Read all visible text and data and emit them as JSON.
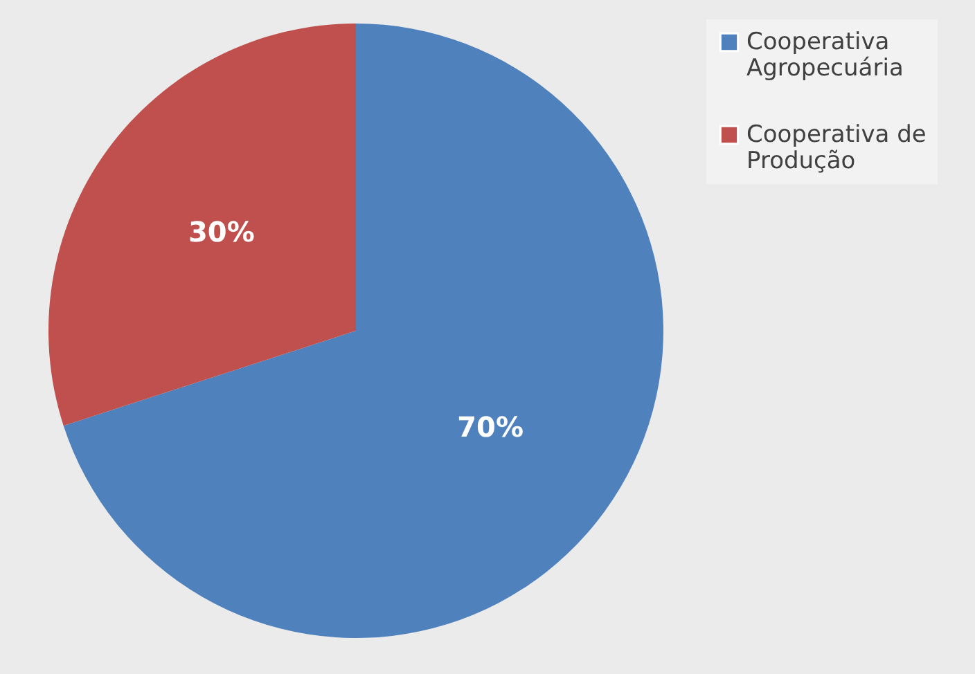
{
  "chart_data": {
    "type": "pie",
    "categories": [
      "Cooperativa Agropecuária",
      "Cooperativa de Produção"
    ],
    "values": [
      70,
      30
    ],
    "colors": [
      "#4f81bd",
      "#c0504d"
    ],
    "value_labels": [
      "70%",
      "30%"
    ],
    "legend": "right"
  }
}
